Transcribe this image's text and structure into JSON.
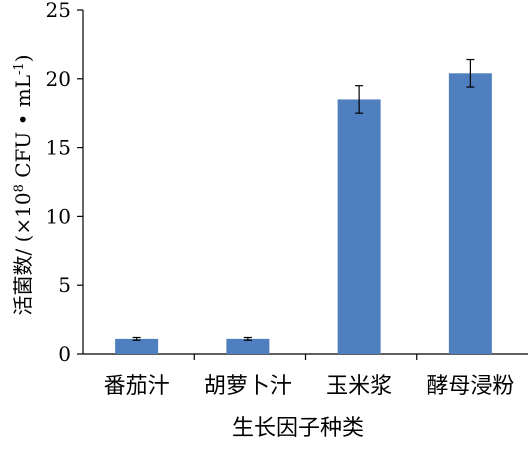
{
  "chart_data": {
    "type": "bar",
    "categories": [
      "番茄汁",
      "胡萝卜汁",
      "玉米浆",
      "酵母浸粉"
    ],
    "values": [
      1.1,
      1.1,
      18.5,
      20.4
    ],
    "error": [
      0.1,
      0.1,
      1.0,
      1.0
    ],
    "xlabel": "生长因子种类",
    "ylabel": {
      "prefix": "活菌数/ (×10",
      "exp1": "8",
      "middle": " CFU • mL",
      "exp2": "-1",
      "suffix": ")"
    },
    "ylim": [
      0,
      25
    ],
    "yticks": [
      0,
      5,
      10,
      15,
      20,
      25
    ],
    "grid": false,
    "legend": "none",
    "bar_color": "#4f7fbf",
    "axis_color": "#000000"
  }
}
